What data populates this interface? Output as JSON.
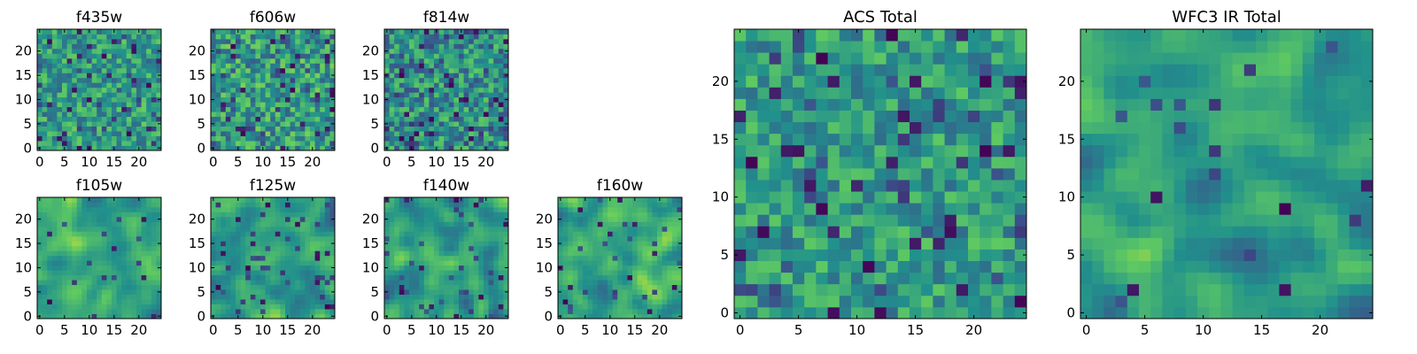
{
  "chart_data": [
    {
      "id": "f435w",
      "type": "heatmap",
      "title": "f435w",
      "xlim": [
        0,
        24
      ],
      "ylim": [
        0,
        24
      ],
      "xticks": [
        "0",
        "5",
        "10",
        "15",
        "20"
      ],
      "yticks": [
        "0",
        "5",
        "10",
        "15",
        "20"
      ],
      "grid_size": 25,
      "texture": "noise",
      "seed": 11,
      "mean": 0.55,
      "spread": 0.22,
      "dark_fraction": 0.035
    },
    {
      "id": "f606w",
      "type": "heatmap",
      "title": "f606w",
      "xlim": [
        0,
        24
      ],
      "ylim": [
        0,
        24
      ],
      "xticks": [
        "0",
        "5",
        "10",
        "15",
        "20"
      ],
      "yticks": [
        "0",
        "5",
        "10",
        "15",
        "20"
      ],
      "grid_size": 25,
      "texture": "noise",
      "seed": 23,
      "mean": 0.55,
      "spread": 0.25,
      "dark_fraction": 0.045
    },
    {
      "id": "f814w",
      "type": "heatmap",
      "title": "f814w",
      "xlim": [
        0,
        24
      ],
      "ylim": [
        0,
        24
      ],
      "xticks": [
        "0",
        "5",
        "10",
        "15",
        "20"
      ],
      "yticks": [
        "0",
        "5",
        "10",
        "15",
        "20"
      ],
      "grid_size": 25,
      "texture": "noise",
      "seed": 37,
      "mean": 0.5,
      "spread": 0.25,
      "dark_fraction": 0.05
    },
    {
      "id": "f105w",
      "type": "heatmap",
      "title": "f105w",
      "xlim": [
        0,
        24
      ],
      "ylim": [
        0,
        24
      ],
      "xticks": [
        "0",
        "5",
        "10",
        "15",
        "20"
      ],
      "yticks": [
        "0",
        "5",
        "10",
        "15",
        "20"
      ],
      "grid_size": 25,
      "texture": "smooth",
      "seed": 41,
      "mean": 0.58,
      "spread": 0.26,
      "dark_fraction": 0.02
    },
    {
      "id": "f125w",
      "type": "heatmap",
      "title": "f125w",
      "xlim": [
        0,
        24
      ],
      "ylim": [
        0,
        24
      ],
      "xticks": [
        "0",
        "5",
        "10",
        "15",
        "20"
      ],
      "yticks": [
        "0",
        "5",
        "10",
        "15",
        "20"
      ],
      "grid_size": 25,
      "texture": "smooth",
      "seed": 53,
      "mean": 0.55,
      "spread": 0.28,
      "dark_fraction": 0.03
    },
    {
      "id": "f140w",
      "type": "heatmap",
      "title": "f140w",
      "xlim": [
        0,
        24
      ],
      "ylim": [
        0,
        24
      ],
      "xticks": [
        "0",
        "5",
        "10",
        "15",
        "20"
      ],
      "yticks": [
        "0",
        "5",
        "10",
        "15",
        "20"
      ],
      "grid_size": 25,
      "texture": "smooth",
      "seed": 67,
      "mean": 0.55,
      "spread": 0.27,
      "dark_fraction": 0.03
    },
    {
      "id": "f160w",
      "type": "heatmap",
      "title": "f160w",
      "xlim": [
        0,
        24
      ],
      "ylim": [
        0,
        24
      ],
      "xticks": [
        "0",
        "5",
        "10",
        "15",
        "20"
      ],
      "yticks": [
        "0",
        "5",
        "10",
        "15",
        "20"
      ],
      "grid_size": 25,
      "texture": "smooth",
      "seed": 79,
      "mean": 0.6,
      "spread": 0.24,
      "dark_fraction": 0.02
    },
    {
      "id": "acs_total",
      "type": "heatmap",
      "title": "ACS Total",
      "xlim": [
        0,
        24
      ],
      "ylim": [
        0,
        24
      ],
      "xticks": [
        "0",
        "5",
        "10",
        "15",
        "20"
      ],
      "yticks": [
        "0",
        "5",
        "10",
        "15",
        "20"
      ],
      "grid_size": 25,
      "texture": "noise",
      "seed": 97,
      "mean": 0.55,
      "spread": 0.2,
      "dark_fraction": 0.04
    },
    {
      "id": "wfc3_ir_total",
      "type": "heatmap",
      "title": "WFC3 IR Total",
      "xlim": [
        0,
        24
      ],
      "ylim": [
        0,
        24
      ],
      "xticks": [
        "0",
        "5",
        "10",
        "15",
        "20"
      ],
      "yticks": [
        "0",
        "5",
        "10",
        "15",
        "20"
      ],
      "grid_size": 25,
      "texture": "smooth",
      "seed": 131,
      "mean": 0.55,
      "spread": 0.25,
      "dark_fraction": 0.02
    }
  ],
  "colormap": [
    "#440154",
    "#3b528b",
    "#21918c",
    "#5ec962",
    "#fde725"
  ]
}
